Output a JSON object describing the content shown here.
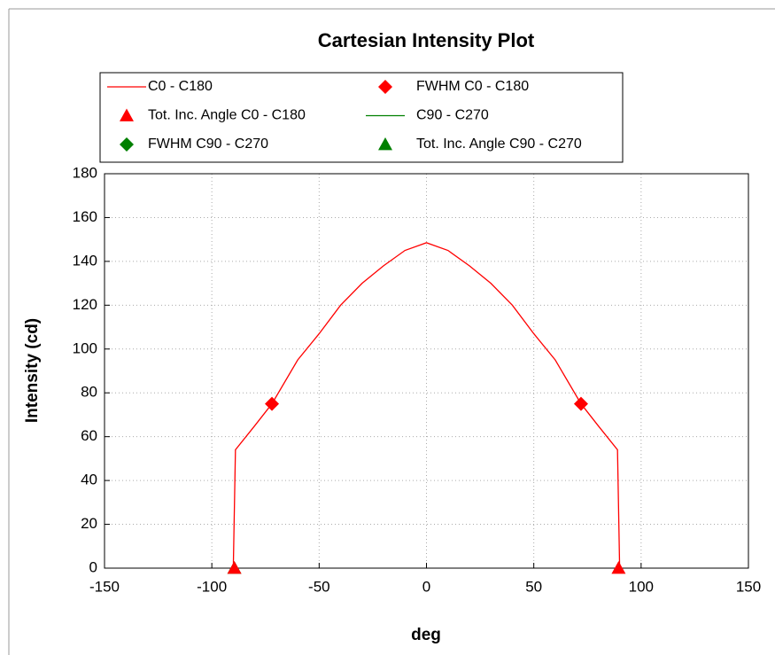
{
  "chart_data": {
    "type": "line",
    "title": "Cartesian Intensity Plot",
    "x_label": "deg",
    "y_label": "Intensity (cd)",
    "xlim": [
      -150,
      150
    ],
    "xticks": [
      -150,
      -100,
      -50,
      0,
      50,
      100,
      150
    ],
    "ylim": [
      0,
      180
    ],
    "yticks": [
      0,
      20,
      40,
      60,
      80,
      100,
      120,
      140,
      160,
      180
    ],
    "grid": true,
    "series": [
      {
        "name": "C0 - C180",
        "color": "#ff0000",
        "marker": "line",
        "x": [
          -90,
          -89,
          -80,
          -72,
          -60,
          -50,
          -40,
          -30,
          -20,
          -10,
          0,
          10,
          20,
          30,
          40,
          50,
          60,
          72,
          80,
          89,
          90
        ],
        "values": [
          0,
          54,
          65,
          75,
          95,
          107,
          120,
          130,
          138,
          145,
          148.5,
          145,
          138,
          130,
          120,
          107,
          95,
          75,
          65,
          54,
          0
        ]
      },
      {
        "name": "FWHM C0 - C180",
        "color": "#ff0000",
        "marker": "diamond",
        "x": [
          -72,
          72
        ],
        "values": [
          75,
          75
        ]
      },
      {
        "name": "Tot. Inc. Angle C0 - C180",
        "color": "#ff0000",
        "marker": "triangle",
        "x": [
          -89.5,
          89.5
        ],
        "values": [
          0,
          0
        ]
      },
      {
        "name": "C90 - C270",
        "color": "#008000",
        "marker": "line",
        "x": [],
        "values": []
      },
      {
        "name": "FWHM C90 - C270",
        "color": "#008000",
        "marker": "diamond",
        "x": [],
        "values": []
      },
      {
        "name": "Tot. Inc. Angle C90 - C270",
        "color": "#008000",
        "marker": "triangle",
        "x": [
          -89.5
        ],
        "values": [
          0
        ]
      }
    ]
  }
}
